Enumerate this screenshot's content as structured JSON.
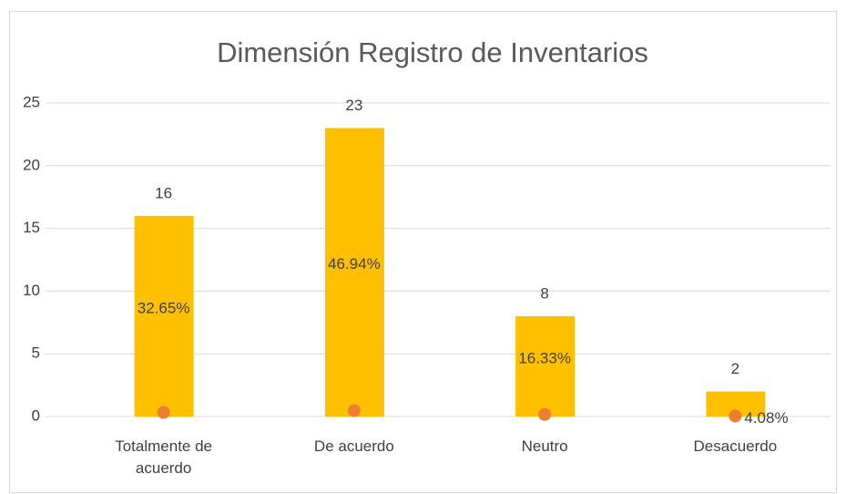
{
  "chart_data": {
    "type": "bar",
    "title": "Dimensión Registro de Inventarios",
    "categories": [
      "Totalmente de acuerdo",
      "De acuerdo",
      "Neutro",
      "Desacuerdo"
    ],
    "series": [
      {
        "type": "bar",
        "color": "#ffc000",
        "values": [
          16,
          23,
          8,
          2
        ]
      },
      {
        "type": "scatter",
        "color": "#ed7d31",
        "values": [
          0.3265,
          0.4694,
          0.1633,
          0.0408
        ],
        "value_labels": [
          "32.65%",
          "46.94%",
          "16.33%",
          "4.08%"
        ]
      }
    ],
    "ylim": [
      0,
      25
    ],
    "yticks": [
      0,
      5,
      10,
      15,
      20,
      25
    ],
    "grid": true
  }
}
